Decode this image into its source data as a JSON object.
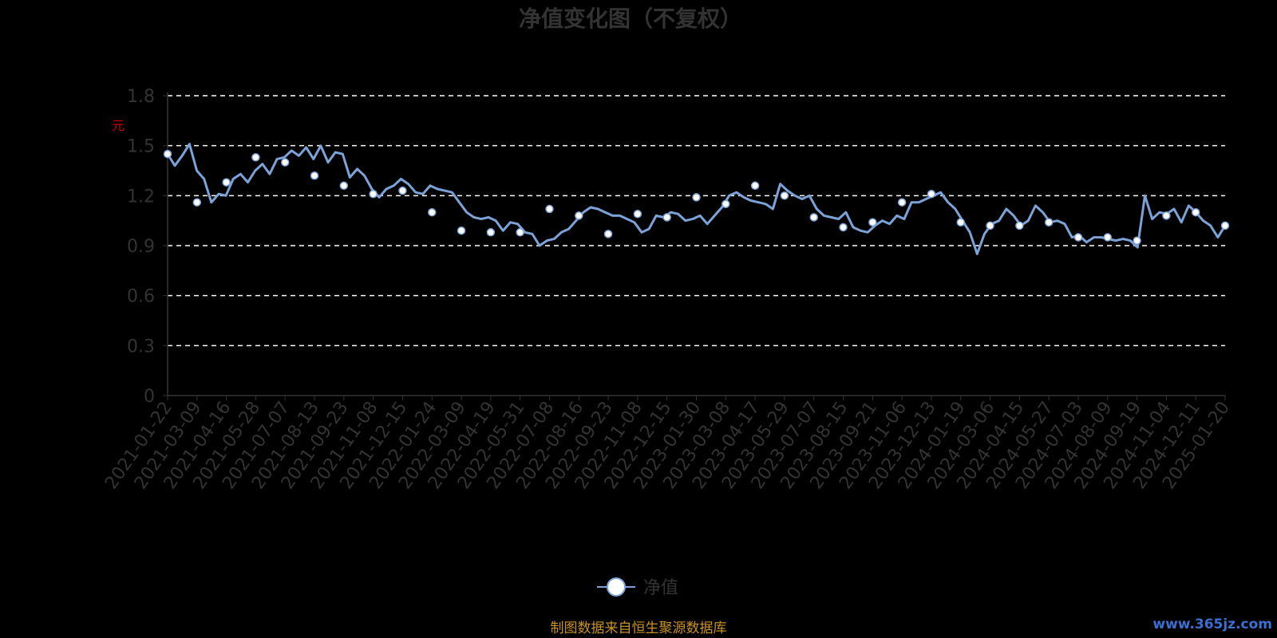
{
  "chart_data": {
    "type": "line",
    "title": "净值变化图（不复权）",
    "y_unit": "元",
    "ylim": [
      0,
      1.8
    ],
    "y_ticks": [
      "0",
      "0.3",
      "0.6",
      "0.9",
      "1.2",
      "1.5",
      "1.8"
    ],
    "grid": true,
    "legend_position": "bottom-center",
    "x_tick_labels": [
      "2021-01-22",
      "2021-03-09",
      "2021-04-16",
      "2021-05-28",
      "2021-07-07",
      "2021-08-13",
      "2021-09-23",
      "2021-11-08",
      "2021-12-15",
      "2022-01-24",
      "2022-03-09",
      "2022-04-19",
      "2022-05-31",
      "2022-07-08",
      "2022-08-16",
      "2022-09-23",
      "2022-11-08",
      "2022-12-15",
      "2023-01-30",
      "2023-03-08",
      "2023-04-17",
      "2023-05-29",
      "2023-07-07",
      "2023-08-15",
      "2023-09-21",
      "2023-11-06",
      "2023-12-13",
      "2024-01-19",
      "2024-03-06",
      "2024-04-15",
      "2024-05-27",
      "2024-07-03",
      "2024-08-09",
      "2024-09-19",
      "2024-11-04",
      "2024-12-11",
      "2025-01-20"
    ],
    "series": [
      {
        "name": "净值",
        "color": "#7ba3d8",
        "values": [
          1.45,
          1.38,
          1.44,
          1.51,
          1.35,
          1.3,
          1.16,
          1.21,
          1.2,
          1.3,
          1.33,
          1.28,
          1.35,
          1.39,
          1.33,
          1.42,
          1.43,
          1.47,
          1.44,
          1.49,
          1.42,
          1.5,
          1.4,
          1.46,
          1.45,
          1.31,
          1.36,
          1.32,
          1.24,
          1.19,
          1.24,
          1.26,
          1.3,
          1.27,
          1.22,
          1.21,
          1.26,
          1.24,
          1.23,
          1.22,
          1.16,
          1.1,
          1.07,
          1.06,
          1.07,
          1.05,
          0.99,
          1.04,
          1.03,
          0.98,
          0.97,
          0.9,
          0.93,
          0.94,
          0.98,
          1.0,
          1.05,
          1.1,
          1.13,
          1.12,
          1.1,
          1.08,
          1.08,
          1.06,
          1.04,
          0.98,
          1.0,
          1.08,
          1.07,
          1.1,
          1.09,
          1.05,
          1.06,
          1.08,
          1.03,
          1.08,
          1.13,
          1.2,
          1.22,
          1.19,
          1.17,
          1.16,
          1.15,
          1.12,
          1.27,
          1.23,
          1.2,
          1.18,
          1.2,
          1.12,
          1.08,
          1.07,
          1.06,
          1.1,
          1.01,
          0.99,
          0.98,
          1.02,
          1.05,
          1.03,
          1.08,
          1.06,
          1.16,
          1.16,
          1.18,
          1.2,
          1.22,
          1.16,
          1.12,
          1.05,
          0.98,
          0.85,
          0.97,
          1.03,
          1.05,
          1.12,
          1.08,
          1.02,
          1.05,
          1.14,
          1.1,
          1.04,
          1.05,
          1.03,
          0.95,
          0.96,
          0.92,
          0.95,
          0.95,
          0.94,
          0.93,
          0.94,
          0.93,
          0.89,
          1.2,
          1.06,
          1.1,
          1.09,
          1.12,
          1.04,
          1.14,
          1.1,
          1.05,
          1.02,
          0.95,
          1.02
        ],
        "markers": [
          1.45,
          1.16,
          1.28,
          1.43,
          1.4,
          1.32,
          1.26,
          1.21,
          1.23,
          1.1,
          0.99,
          0.98,
          0.98,
          1.12,
          1.08,
          0.97,
          1.09,
          1.07,
          1.19,
          1.15,
          1.26,
          1.2,
          1.07,
          1.01,
          1.04,
          1.16,
          1.21,
          1.04,
          1.02,
          1.02,
          1.04,
          0.95,
          0.95,
          0.93,
          1.08,
          1.1,
          1.02
        ]
      }
    ],
    "legend": [
      "净值"
    ]
  },
  "footer": {
    "source": "制图数据来自恒生聚源数据库",
    "watermark": "www.365jz.com"
  }
}
